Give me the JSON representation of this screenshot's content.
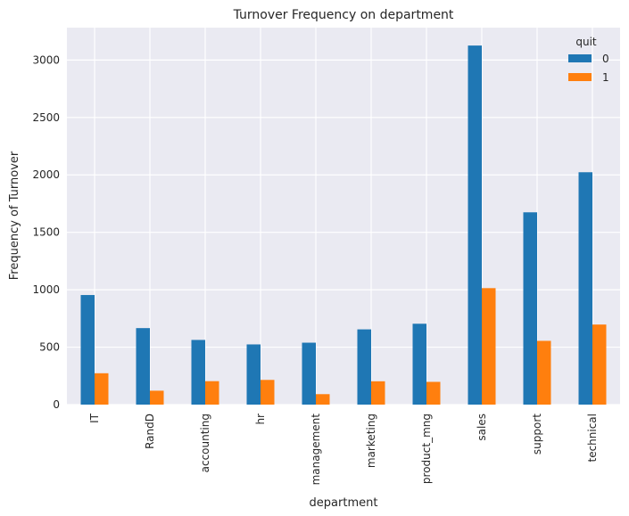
{
  "chart_data": {
    "type": "bar",
    "title": "Turnover Frequency on department",
    "xlabel": "department",
    "ylabel": "Frequency of Turnover",
    "categories": [
      "IT",
      "RandD",
      "accounting",
      "hr",
      "management",
      "marketing",
      "product_mng",
      "sales",
      "support",
      "technical"
    ],
    "series": [
      {
        "name": "0",
        "values": [
          954,
          666,
          563,
          524,
          539,
          655,
          704,
          3126,
          1674,
          2023
        ]
      },
      {
        "name": "1",
        "values": [
          273,
          121,
          204,
          215,
          91,
          203,
          198,
          1014,
          555,
          697
        ]
      }
    ],
    "ylim": [
      0,
      3282
    ],
    "yticks": [
      0,
      500,
      1000,
      1500,
      2000,
      2500,
      3000
    ],
    "grid": true,
    "legend_title": "quit",
    "legend_position": "top-right",
    "colors": [
      "#1f77b4",
      "#ff7f0e"
    ],
    "background": "#eaeaf2"
  }
}
